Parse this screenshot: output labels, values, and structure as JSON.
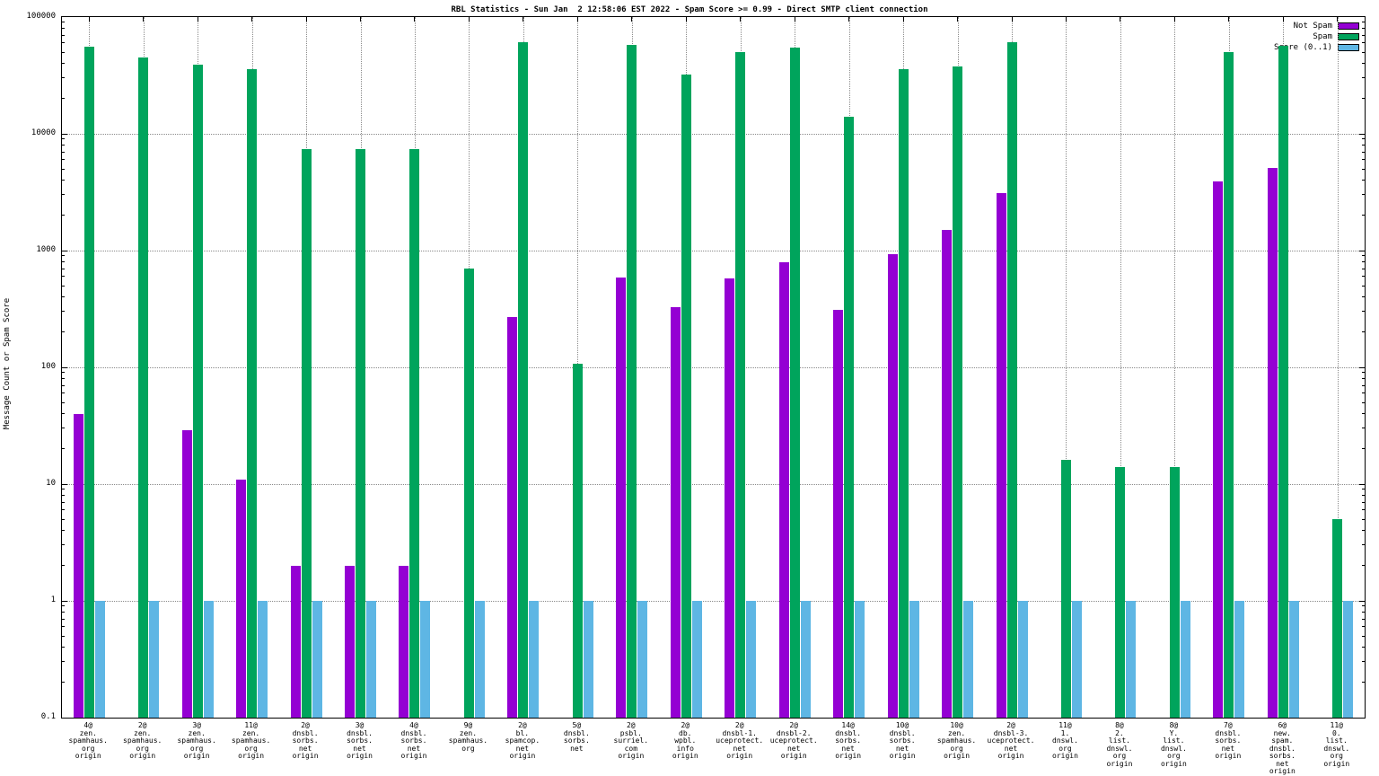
{
  "chart_data": {
    "type": "bar",
    "title": "RBL Statistics - Sun Jan  2 12:58:06 EST 2022 - Spam Score >= 0.99 - Direct SMTP client connection",
    "ylabel": "Message Count or Spam Score",
    "y_scale": "log",
    "ylim": [
      0.1,
      100000
    ],
    "y_ticks": [
      "100000",
      "10000",
      "1000",
      "100",
      "10",
      "1",
      "0.1"
    ],
    "grid": true,
    "legend_position": "top-right",
    "colors": {
      "not_spam": "#9400d3",
      "spam": "#00a45c",
      "score": "#5eb6e4"
    },
    "legend": [
      {
        "label": "Not Spam",
        "series": "not_spam"
      },
      {
        "label": "Spam",
        "series": "spam"
      },
      {
        "label": "Score (0..1)",
        "series": "score"
      }
    ],
    "categories": [
      {
        "lines": [
          "4@",
          "zen.",
          "spamhaus.",
          "org",
          "origin"
        ],
        "not_spam": 40,
        "spam": 56000,
        "score": 1
      },
      {
        "lines": [
          "2@",
          "zen.",
          "spamhaus.",
          "org",
          "origin"
        ],
        "not_spam": null,
        "spam": 45000,
        "score": 1
      },
      {
        "lines": [
          "3@",
          "zen.",
          "spamhaus.",
          "org",
          "origin"
        ],
        "not_spam": 29,
        "spam": 39000,
        "score": 1
      },
      {
        "lines": [
          "11@",
          "zen.",
          "spamhaus.",
          "org",
          "origin"
        ],
        "not_spam": 11,
        "spam": 36000,
        "score": 1
      },
      {
        "lines": [
          "2@",
          "dnsbl.",
          "sorbs.",
          "net",
          "origin"
        ],
        "not_spam": 2,
        "spam": 7400,
        "score": 1
      },
      {
        "lines": [
          "3@",
          "dnsbl.",
          "sorbs.",
          "net",
          "origin"
        ],
        "not_spam": 2,
        "spam": 7400,
        "score": 1
      },
      {
        "lines": [
          "4@",
          "dnsbl.",
          "sorbs.",
          "net",
          "origin"
        ],
        "not_spam": 2,
        "spam": 7400,
        "score": 1
      },
      {
        "lines": [
          "9@",
          "zen.",
          "spamhaus.",
          "org"
        ],
        "not_spam": null,
        "spam": 700,
        "score": 1
      },
      {
        "lines": [
          "2@",
          "bl.",
          "spamcop.",
          "net",
          "origin"
        ],
        "not_spam": 270,
        "spam": 61000,
        "score": 1
      },
      {
        "lines": [
          "5@",
          "dnsbl.",
          "sorbs.",
          "net"
        ],
        "not_spam": null,
        "spam": 108,
        "score": 1
      },
      {
        "lines": [
          "2@",
          "psbl.",
          "surriel.",
          "com",
          "origin"
        ],
        "not_spam": 590,
        "spam": 58000,
        "score": 1
      },
      {
        "lines": [
          "2@",
          "db.",
          "wpbl.",
          "info",
          "origin"
        ],
        "not_spam": 330,
        "spam": 32000,
        "score": 1
      },
      {
        "lines": [
          "2@",
          "dnsbl-1.",
          "uceprotect.",
          "net",
          "origin"
        ],
        "not_spam": 580,
        "spam": 50000,
        "score": 1
      },
      {
        "lines": [
          "2@",
          "dnsbl-2.",
          "uceprotect.",
          "net",
          "origin"
        ],
        "not_spam": 800,
        "spam": 55000,
        "score": 1
      },
      {
        "lines": [
          "14@",
          "dnsbl.",
          "sorbs.",
          "net",
          "origin"
        ],
        "not_spam": 310,
        "spam": 14000,
        "score": 1
      },
      {
        "lines": [
          "10@",
          "dnsbl.",
          "sorbs.",
          "net",
          "origin"
        ],
        "not_spam": 930,
        "spam": 36000,
        "score": 1
      },
      {
        "lines": [
          "10@",
          "zen.",
          "spamhaus.",
          "org",
          "origin"
        ],
        "not_spam": 1500,
        "spam": 38000,
        "score": 1
      },
      {
        "lines": [
          "2@",
          "dnsbl-3.",
          "uceprotect.",
          "net",
          "origin"
        ],
        "not_spam": 3100,
        "spam": 61000,
        "score": 1
      },
      {
        "lines": [
          "11@",
          "1.",
          "dnswl.",
          "org",
          "origin"
        ],
        "not_spam": null,
        "spam": 16,
        "score": 1
      },
      {
        "lines": [
          "8@",
          "2.",
          "list.",
          "dnswl.",
          "org",
          "origin"
        ],
        "not_spam": null,
        "spam": 14,
        "score": 1
      },
      {
        "lines": [
          "8@",
          "Y.",
          "list.",
          "dnswl.",
          "org",
          "origin"
        ],
        "not_spam": null,
        "spam": 14,
        "score": 1
      },
      {
        "lines": [
          "7@",
          "dnsbl.",
          "sorbs.",
          "net",
          "origin"
        ],
        "not_spam": 3900,
        "spam": 50000,
        "score": 1
      },
      {
        "lines": [
          "6@",
          "new.",
          "spam.",
          "dnsbl.",
          "sorbs.",
          "net",
          "origin"
        ],
        "not_spam": 5100,
        "spam": 57000,
        "score": 1
      },
      {
        "lines": [
          "11@",
          "0.",
          "list.",
          "dnswl.",
          "org",
          "origin"
        ],
        "not_spam": null,
        "spam": 5,
        "score": 1
      }
    ]
  }
}
